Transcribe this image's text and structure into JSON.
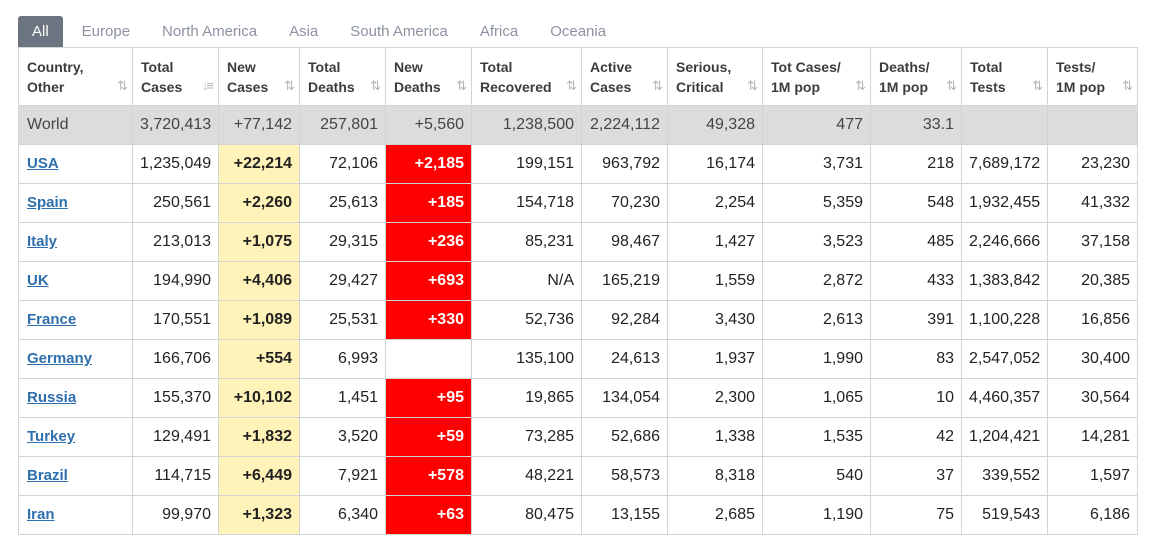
{
  "tabs": [
    "All",
    "Europe",
    "North America",
    "Asia",
    "South America",
    "Africa",
    "Oceania"
  ],
  "active_tab": "All",
  "columns": [
    {
      "line1": "Country,",
      "line2": "Other",
      "sort": "⇅"
    },
    {
      "line1": "Total",
      "line2": "Cases",
      "sort": "↓≡"
    },
    {
      "line1": "New",
      "line2": "Cases",
      "sort": "⇅"
    },
    {
      "line1": "Total",
      "line2": "Deaths",
      "sort": "⇅"
    },
    {
      "line1": "New",
      "line2": "Deaths",
      "sort": "⇅"
    },
    {
      "line1": "Total",
      "line2": "Recovered",
      "sort": "⇅"
    },
    {
      "line1": "Active",
      "line2": "Cases",
      "sort": "⇅"
    },
    {
      "line1": "Serious,",
      "line2": "Critical",
      "sort": "⇅"
    },
    {
      "line1": "Tot Cases/",
      "line2": "1M pop",
      "sort": "⇅"
    },
    {
      "line1": "Deaths/",
      "line2": "1M pop",
      "sort": "⇅"
    },
    {
      "line1": "Total",
      "line2": "Tests",
      "sort": "⇅"
    },
    {
      "line1": "Tests/",
      "line2": "1M pop",
      "sort": "⇅"
    }
  ],
  "world": [
    "World",
    "3,720,413",
    "+77,142",
    "257,801",
    "+5,560",
    "1,238,500",
    "2,224,112",
    "49,328",
    "477",
    "33.1",
    "",
    ""
  ],
  "rows": [
    [
      "USA",
      "1,235,049",
      "+22,214",
      "72,106",
      "+2,185",
      "199,151",
      "963,792",
      "16,174",
      "3,731",
      "218",
      "7,689,172",
      "23,230"
    ],
    [
      "Spain",
      "250,561",
      "+2,260",
      "25,613",
      "+185",
      "154,718",
      "70,230",
      "2,254",
      "5,359",
      "548",
      "1,932,455",
      "41,332"
    ],
    [
      "Italy",
      "213,013",
      "+1,075",
      "29,315",
      "+236",
      "85,231",
      "98,467",
      "1,427",
      "3,523",
      "485",
      "2,246,666",
      "37,158"
    ],
    [
      "UK",
      "194,990",
      "+4,406",
      "29,427",
      "+693",
      "N/A",
      "165,219",
      "1,559",
      "2,872",
      "433",
      "1,383,842",
      "20,385"
    ],
    [
      "France",
      "170,551",
      "+1,089",
      "25,531",
      "+330",
      "52,736",
      "92,284",
      "3,430",
      "2,613",
      "391",
      "1,100,228",
      "16,856"
    ],
    [
      "Germany",
      "166,706",
      "+554",
      "6,993",
      "",
      "135,100",
      "24,613",
      "1,937",
      "1,990",
      "83",
      "2,547,052",
      "30,400"
    ],
    [
      "Russia",
      "155,370",
      "+10,102",
      "1,451",
      "+95",
      "19,865",
      "134,054",
      "2,300",
      "1,065",
      "10",
      "4,460,357",
      "30,564"
    ],
    [
      "Turkey",
      "129,491",
      "+1,832",
      "3,520",
      "+59",
      "73,285",
      "52,686",
      "1,338",
      "1,535",
      "42",
      "1,204,421",
      "14,281"
    ],
    [
      "Brazil",
      "114,715",
      "+6,449",
      "7,921",
      "+578",
      "48,221",
      "58,573",
      "8,318",
      "540",
      "37",
      "339,552",
      "1,597"
    ],
    [
      "Iran",
      "99,970",
      "+1,323",
      "6,340",
      "+63",
      "80,475",
      "13,155",
      "2,685",
      "1,190",
      "75",
      "519,543",
      "6,186"
    ]
  ],
  "colors": {
    "new_cases_bg": "#fff3b9",
    "new_deaths_bg": "#ff0000",
    "world_bg": "#dcdcdc",
    "link": "#2e6fad",
    "active_tab_bg": "#6b7480"
  }
}
